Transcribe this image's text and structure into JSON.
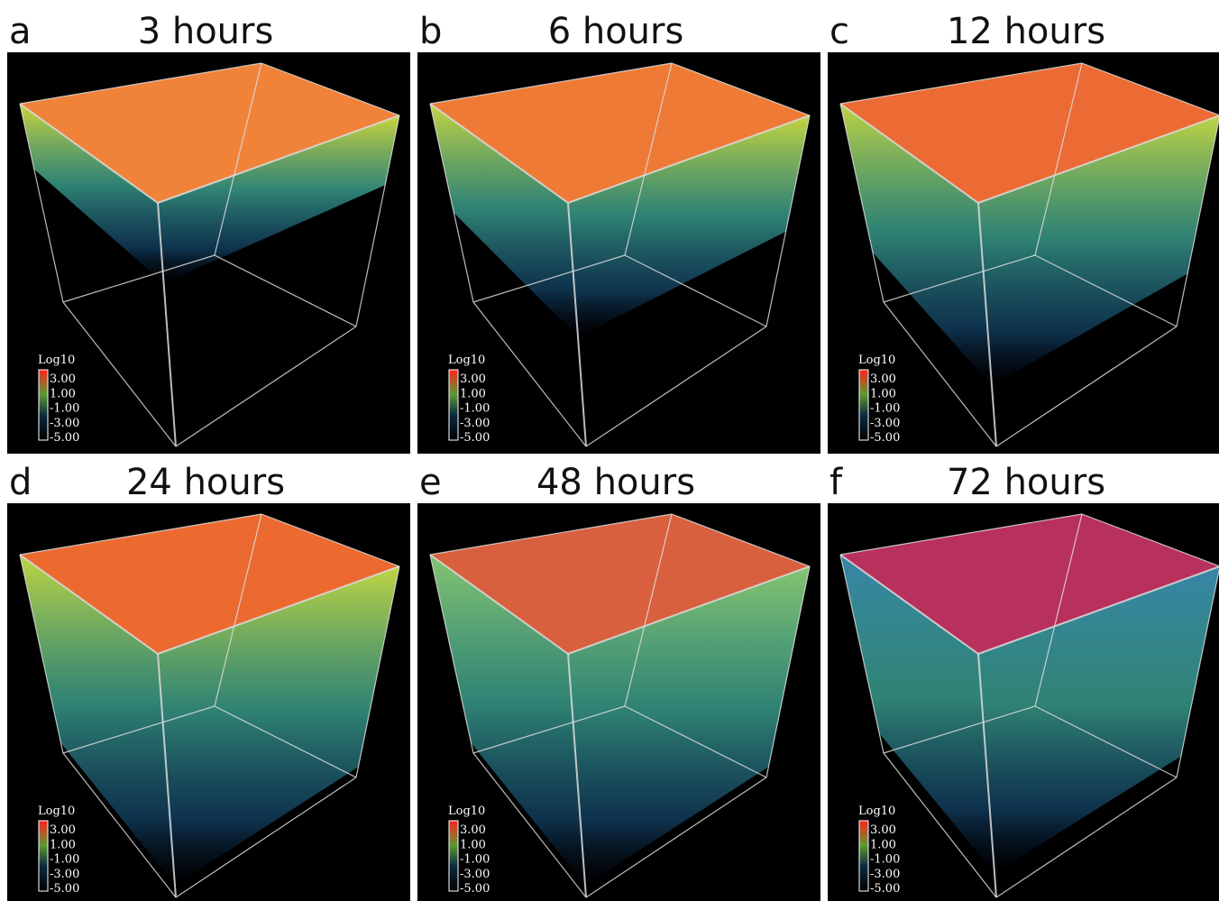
{
  "panels": [
    {
      "letter": "a",
      "title": "3 hours"
    },
    {
      "letter": "b",
      "title": "6 hours"
    },
    {
      "letter": "c",
      "title": "12 hours"
    },
    {
      "letter": "d",
      "title": "24 hours"
    },
    {
      "letter": "e",
      "title": "48 hours"
    },
    {
      "letter": "f",
      "title": "72 hours"
    }
  ],
  "colorbar": {
    "title": "Log10",
    "labels": [
      "3.00",
      "1.00",
      "-1.00",
      "-3.00",
      "-5.00"
    ]
  }
}
